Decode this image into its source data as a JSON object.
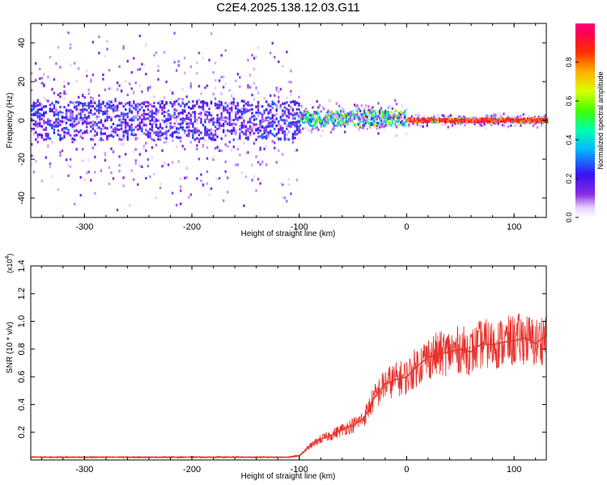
{
  "title": "C2E4.2025.138.12.03.G11",
  "colors": {
    "snr_line": "#e8302a",
    "spectrogram_background": "#ffffff",
    "axis": "#000000"
  },
  "chart_data": [
    {
      "type": "heatmap",
      "xlabel": "Height of straight line (km)",
      "ylabel": "Frequency (Hz)",
      "xlim": [
        -350,
        130
      ],
      "ylim": [
        -50,
        50
      ],
      "x_ticks": [
        -300,
        -200,
        -100,
        0,
        100
      ],
      "x_tick_labels": [
        "-300",
        "-200",
        "-100",
        "0",
        "100"
      ],
      "y_ticks": [
        -40,
        -20,
        0,
        20,
        40
      ],
      "y_tick_labels": [
        "-40",
        "-20",
        "0",
        "20",
        "40"
      ],
      "grid": false,
      "colorbar": {
        "label": "Normalized spectral amplitude",
        "range": [
          0,
          1
        ],
        "ticks": [
          0,
          0.2,
          0.4,
          0.6,
          0.8
        ],
        "tick_labels": [
          "0.0",
          "0.2",
          "0.4",
          "0.6",
          "0.8"
        ],
        "colormap": "rainbow (white-purple-blue-cyan-green-yellow-red-magenta)"
      },
      "regions": [
        {
          "x_range": [
            -350,
            -100
          ],
          "freq_spread_hz": 50,
          "core_band_hz": [
            -10,
            10
          ],
          "peak_amplitude": 0.3,
          "description_level": "noisy broadband"
        },
        {
          "x_range": [
            -100,
            0
          ],
          "freq_spread_hz": 10,
          "core_band_hz": [
            -3,
            5
          ],
          "peak_amplitude": 0.7
        },
        {
          "x_range": [
            0,
            130
          ],
          "freq_spread_hz": 4,
          "core_band_hz": [
            -1,
            1
          ],
          "peak_amplitude": 1.0
        }
      ]
    },
    {
      "type": "line",
      "xlabel": "Height of straight line (km)",
      "ylabel": "SNR (10 * v/v)",
      "y_scale_label": "(x10",
      "y_scale_exp": "4",
      "y_scale_close": ")",
      "xlim": [
        -350,
        130
      ],
      "ylim": [
        0,
        1.4
      ],
      "x_ticks": [
        -300,
        -200,
        -100,
        0,
        100
      ],
      "x_tick_labels": [
        "-300",
        "-200",
        "-100",
        "0",
        "100"
      ],
      "y_ticks": [
        0.2,
        0.4,
        0.6,
        0.8,
        1.0,
        1.2,
        1.4
      ],
      "y_tick_labels": [
        "0.2",
        "0.4",
        "0.6",
        "0.8",
        "1.0",
        "1.2",
        "1.4"
      ],
      "grid": false,
      "series": [
        {
          "x": [
            -350,
            -300,
            -250,
            -200,
            -150,
            -110,
            -100,
            -90,
            -80,
            -70,
            -60,
            -50,
            -40,
            -30,
            -20,
            -10,
            0,
            10,
            20,
            30,
            40,
            50,
            60,
            70,
            80,
            90,
            100,
            110,
            120,
            130
          ],
          "values": [
            0.02,
            0.02,
            0.02,
            0.02,
            0.02,
            0.02,
            0.03,
            0.1,
            0.15,
            0.18,
            0.22,
            0.25,
            0.3,
            0.45,
            0.55,
            0.58,
            0.6,
            0.68,
            0.74,
            0.76,
            0.78,
            0.8,
            0.78,
            0.84,
            0.83,
            0.85,
            0.86,
            0.88,
            0.84,
            0.9
          ]
        }
      ]
    }
  ]
}
